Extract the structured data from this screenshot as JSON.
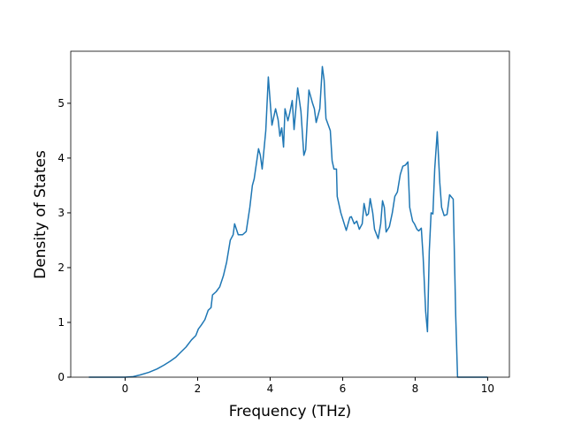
{
  "chart_data": {
    "type": "line",
    "xlabel": "Frequency (THz)",
    "ylabel": "Density of States",
    "x": [
      -1,
      0,
      0.22,
      0.41,
      0.66,
      0.88,
      1.07,
      1.24,
      1.39,
      1.54,
      1.68,
      1.83,
      1.95,
      2.02,
      2.1,
      2.2,
      2.29,
      2.37,
      2.41,
      2.51,
      2.61,
      2.71,
      2.8,
      2.9,
      2.98,
      3.02,
      3.12,
      3.24,
      3.34,
      3.44,
      3.51,
      3.56,
      3.68,
      3.73,
      3.78,
      3.88,
      3.95,
      4.05,
      4.15,
      4.22,
      4.27,
      4.32,
      4.37,
      4.41,
      4.49,
      4.54,
      4.61,
      4.66,
      4.76,
      4.85,
      4.93,
      4.98,
      5.07,
      5.17,
      5.22,
      5.27,
      5.37,
      5.44,
      5.49,
      5.54,
      5.66,
      5.71,
      5.76,
      5.83,
      5.85,
      5.95,
      6.1,
      6.2,
      6.24,
      6.32,
      6.39,
      6.46,
      6.54,
      6.59,
      6.66,
      6.71,
      6.76,
      6.83,
      6.88,
      6.98,
      7.05,
      7.1,
      7.15,
      7.2,
      7.29,
      7.37,
      7.44,
      7.51,
      7.59,
      7.66,
      7.73,
      7.8,
      7.85,
      7.93,
      7.98,
      8.05,
      8.1,
      8.17,
      8.22,
      8.29,
      8.34,
      8.39,
      8.44,
      8.49,
      8.54,
      8.61,
      8.68,
      8.73,
      8.8,
      8.88,
      8.95,
      9.05,
      9.12,
      9.17,
      10
    ],
    "series": [
      {
        "name": "dos",
        "color": "#1f77b4",
        "values": [
          0,
          0,
          0.01,
          0.04,
          0.09,
          0.15,
          0.22,
          0.29,
          0.36,
          0.46,
          0.55,
          0.68,
          0.76,
          0.88,
          0.95,
          1.05,
          1.22,
          1.27,
          1.5,
          1.56,
          1.65,
          1.85,
          2.1,
          2.5,
          2.6,
          2.8,
          2.6,
          2.6,
          2.66,
          3.1,
          3.5,
          3.62,
          4.17,
          4.05,
          3.8,
          4.5,
          5.48,
          4.6,
          4.9,
          4.7,
          4.4,
          4.55,
          4.2,
          4.9,
          4.68,
          4.82,
          5.05,
          4.52,
          5.28,
          4.85,
          4.05,
          4.15,
          5.24,
          5.0,
          4.9,
          4.65,
          4.9,
          5.67,
          5.42,
          4.72,
          4.5,
          3.95,
          3.8,
          3.8,
          3.3,
          3.0,
          2.68,
          2.92,
          2.93,
          2.8,
          2.85,
          2.7,
          2.8,
          3.17,
          2.95,
          2.98,
          3.26,
          3.0,
          2.7,
          2.53,
          2.8,
          3.22,
          3.1,
          2.65,
          2.75,
          3.0,
          3.3,
          3.38,
          3.7,
          3.85,
          3.87,
          3.93,
          3.1,
          2.85,
          2.8,
          2.7,
          2.67,
          2.72,
          2.2,
          1.2,
          0.83,
          2.3,
          3.0,
          2.98,
          3.8,
          4.48,
          3.55,
          3.1,
          2.95,
          2.97,
          3.33,
          3.25,
          1.1,
          0,
          0
        ]
      }
    ],
    "xlim": [
      -1.5,
      10.6
    ],
    "xticks": [
      0,
      2,
      4,
      6,
      8,
      10
    ],
    "ylim": [
      0,
      5.95
    ],
    "yticks": [
      0,
      1,
      2,
      3,
      4,
      5
    ]
  }
}
